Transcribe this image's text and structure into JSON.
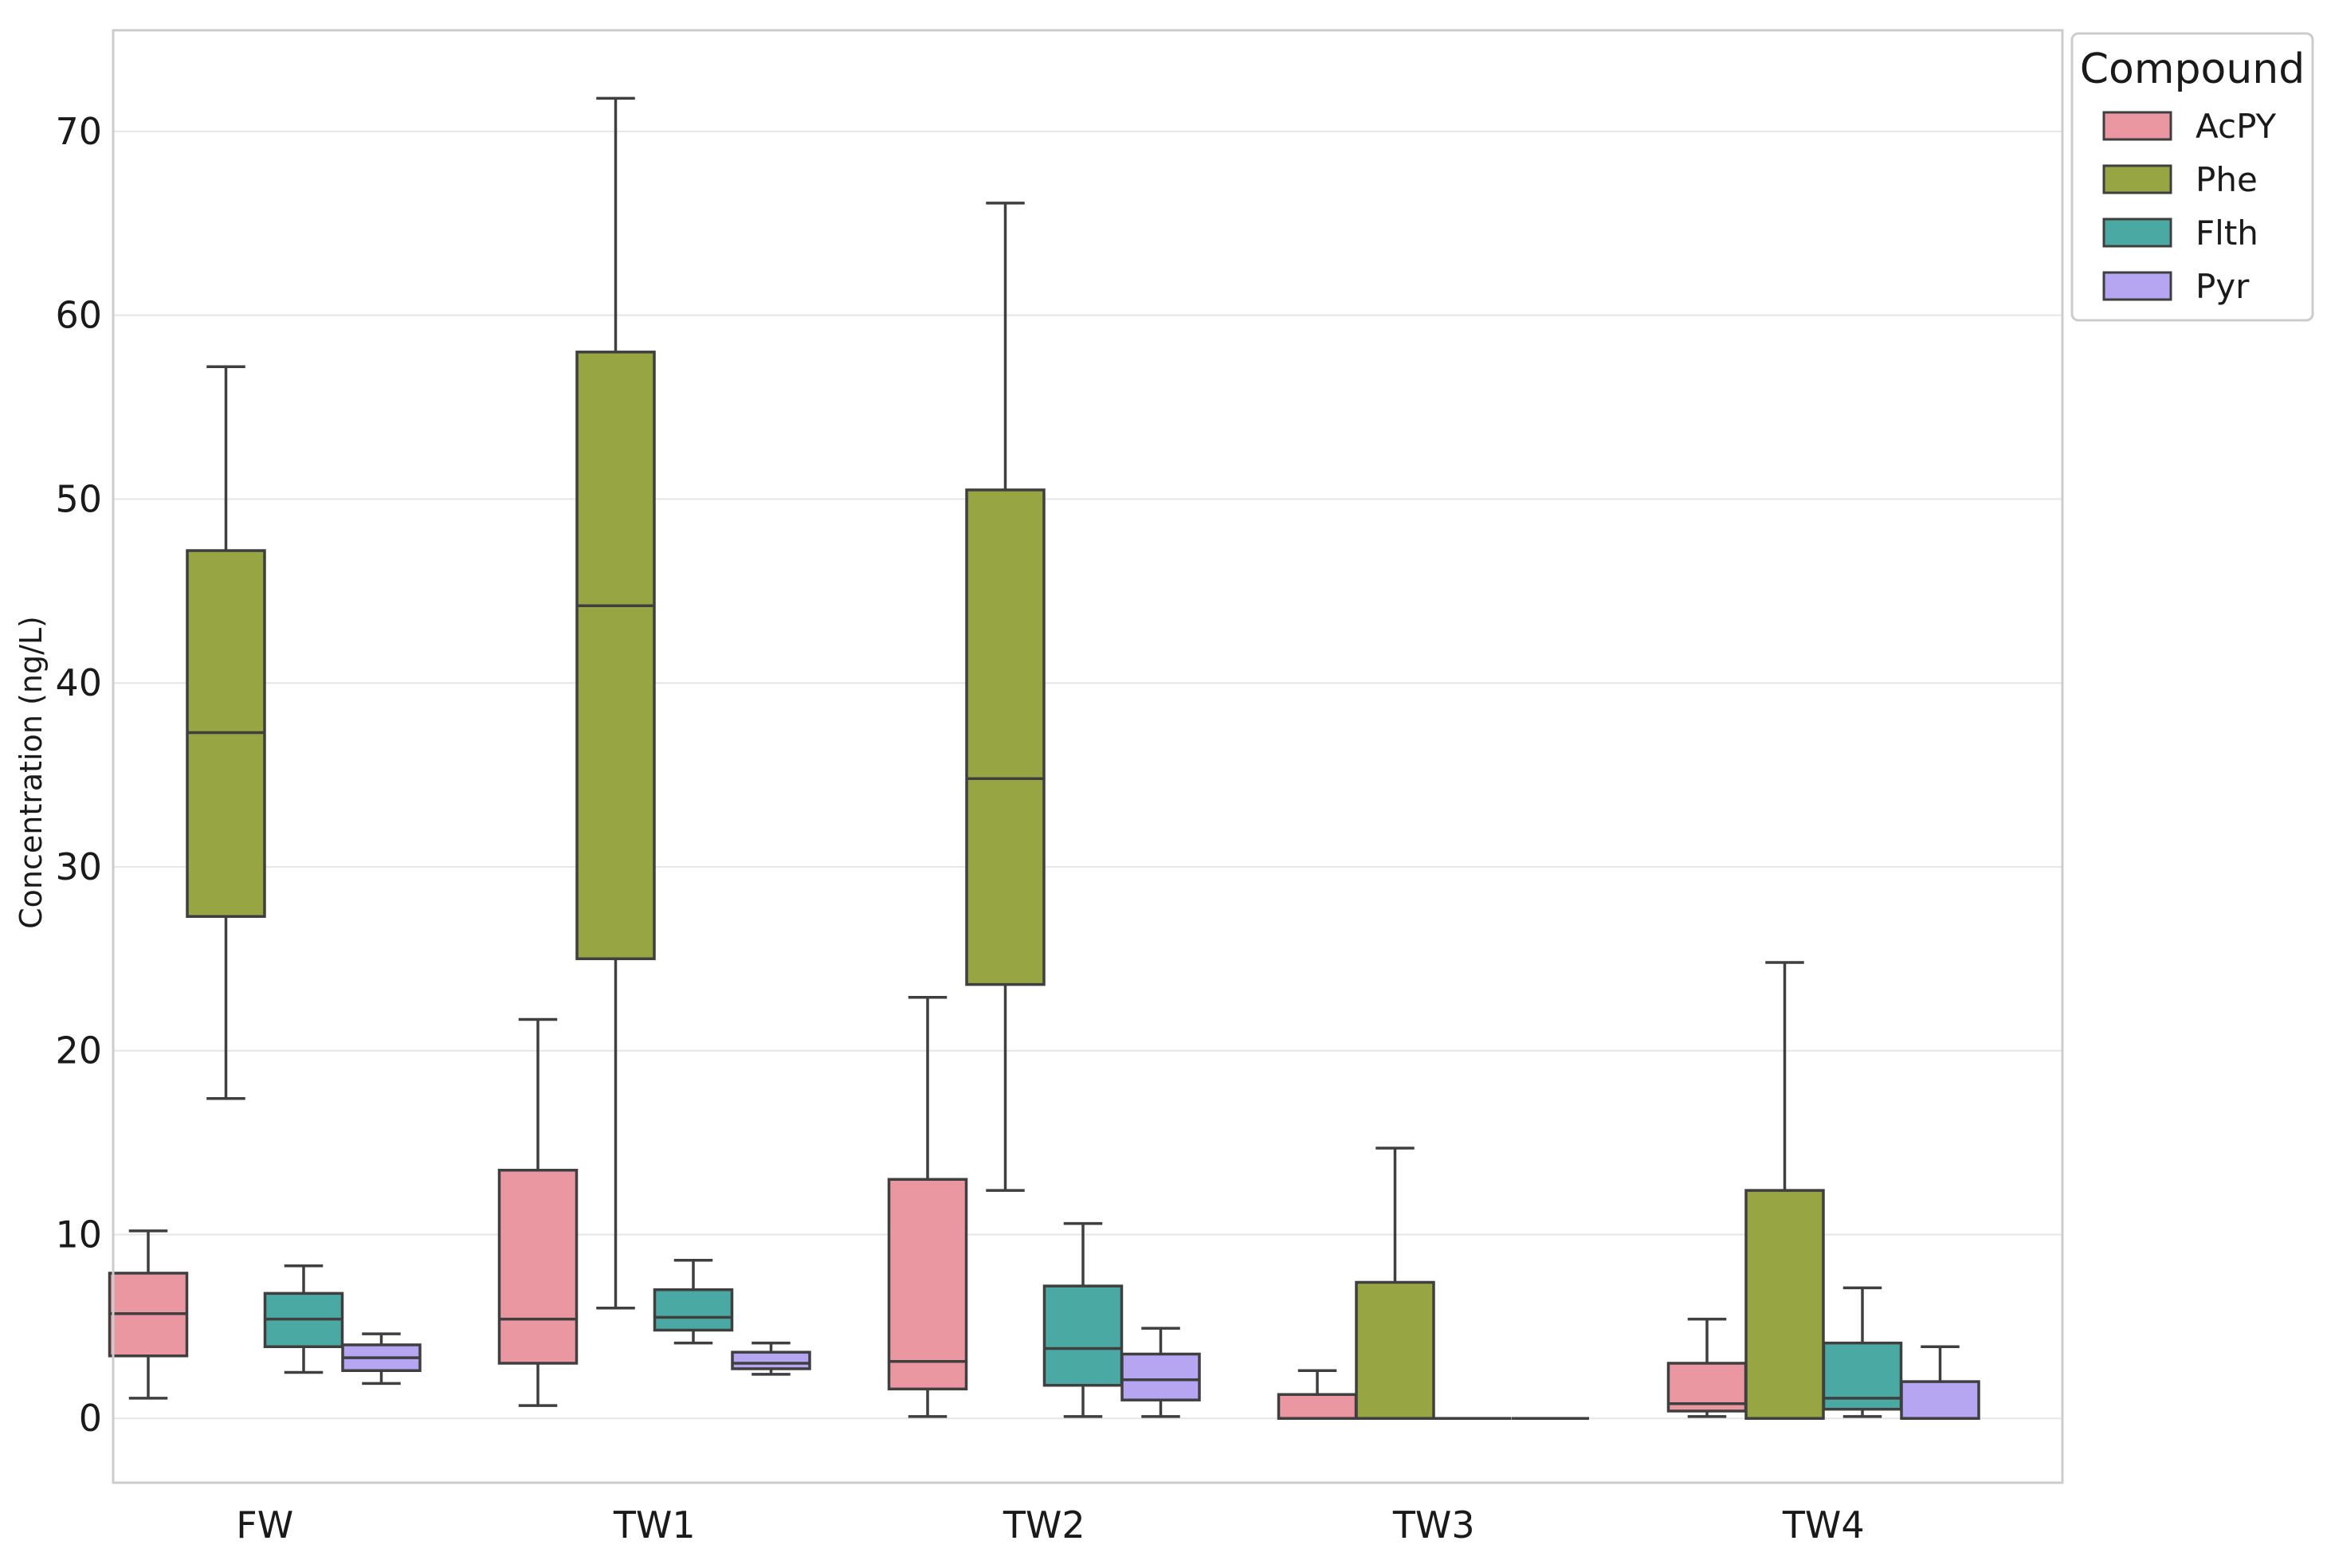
{
  "chart_data": {
    "type": "boxplot",
    "title": "",
    "xlabel": "",
    "ylabel": "Concentration (ng/L)",
    "ylim": [
      -3.5,
      75.5
    ],
    "yticks": [
      0,
      10,
      20,
      30,
      40,
      50,
      60,
      70
    ],
    "grid": true,
    "legend_position": "outside-top-right",
    "legend_title": "Compound",
    "categories": [
      "FW",
      "TW1",
      "TW2",
      "TW3",
      "TW4"
    ],
    "series": [
      {
        "name": "AcPY",
        "color": "#eb97a1",
        "boxes": [
          {
            "min": 1.1,
            "q1": 3.4,
            "median": 5.7,
            "q3": 7.9,
            "max": 10.2
          },
          {
            "min": 0.7,
            "q1": 3.0,
            "median": 5.4,
            "q3": 13.5,
            "max": 21.7
          },
          {
            "min": 0.1,
            "q1": 1.6,
            "median": 3.1,
            "q3": 13.0,
            "max": 22.9
          },
          {
            "min": 0.0,
            "q1": 0.0,
            "median": 0.0,
            "q3": 1.3,
            "max": 2.6
          },
          {
            "min": 0.1,
            "q1": 0.4,
            "median": 0.8,
            "q3": 3.0,
            "max": 5.4
          }
        ]
      },
      {
        "name": "Phe",
        "color": "#97a543",
        "boxes": [
          {
            "min": 17.4,
            "q1": 27.3,
            "median": 37.3,
            "q3": 47.2,
            "max": 57.2
          },
          {
            "min": 6.0,
            "q1": 25.0,
            "median": 44.2,
            "q3": 58.0,
            "max": 71.8
          },
          {
            "min": 12.4,
            "q1": 23.6,
            "median": 34.8,
            "q3": 50.5,
            "max": 66.1
          },
          {
            "min": 0.0,
            "q1": 0.0,
            "median": 0.0,
            "q3": 7.4,
            "max": 14.7
          },
          {
            "min": 0.0,
            "q1": 0.0,
            "median": 0.0,
            "q3": 12.4,
            "max": 24.8
          }
        ]
      },
      {
        "name": "Flth",
        "color": "#4ba9a3",
        "boxes": [
          {
            "min": 2.5,
            "q1": 3.9,
            "median": 5.4,
            "q3": 6.8,
            "max": 8.3
          },
          {
            "min": 4.1,
            "q1": 4.8,
            "median": 5.5,
            "q3": 7.0,
            "max": 8.6
          },
          {
            "min": 0.1,
            "q1": 1.8,
            "median": 3.8,
            "q3": 7.2,
            "max": 10.6
          },
          {
            "min": 0.0,
            "q1": 0.0,
            "median": 0.0,
            "q3": 0.0,
            "max": 0.0
          },
          {
            "min": 0.1,
            "q1": 0.5,
            "median": 1.1,
            "q3": 4.1,
            "max": 7.1
          }
        ]
      },
      {
        "name": "Pyr",
        "color": "#b6a5f1",
        "boxes": [
          {
            "min": 1.9,
            "q1": 2.6,
            "median": 3.3,
            "q3": 4.0,
            "max": 4.6
          },
          {
            "min": 2.4,
            "q1": 2.7,
            "median": 3.0,
            "q3": 3.6,
            "max": 4.1
          },
          {
            "min": 0.1,
            "q1": 1.0,
            "median": 2.1,
            "q3": 3.5,
            "max": 4.9
          },
          {
            "min": 0.0,
            "q1": 0.0,
            "median": 0.0,
            "q3": 0.0,
            "max": 0.0
          },
          {
            "min": 0.0,
            "q1": 0.0,
            "median": 0.0,
            "q3": 2.0,
            "max": 3.9
          }
        ]
      }
    ]
  },
  "colors": {
    "box_edge": "#3f3f3f",
    "grid": "#e6e6e6",
    "frame": "#cccccc"
  }
}
